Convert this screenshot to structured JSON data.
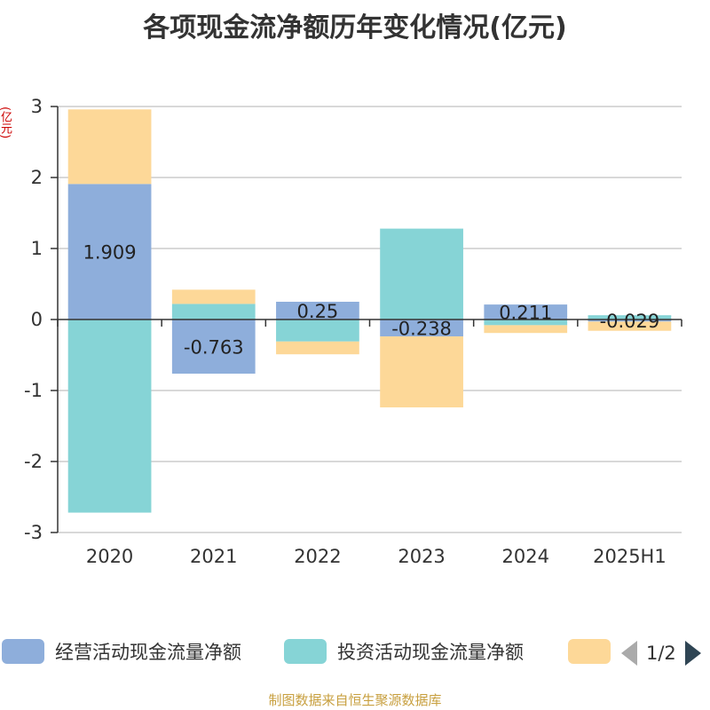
{
  "title": "各项现金流净额历年变化情况(亿元)",
  "unit_label": "(亿元)",
  "source": "制图数据来自恒生聚源数据库",
  "legend": {
    "items": [
      {
        "label": "经营活动现金流量净额",
        "color": "#8eaedb"
      },
      {
        "label": "投资活动现金流量净额",
        "color": "#86d4d6"
      },
      {
        "label": "",
        "color": "#fdd898"
      }
    ],
    "page": "1/2"
  },
  "colors": {
    "operating": "#8eaedb",
    "investing": "#86d4d6",
    "financing": "#fdd898",
    "grid": "#cccccc",
    "axis": "#333333"
  },
  "chart_data": {
    "type": "bar",
    "stacked": true,
    "categories": [
      "2020",
      "2021",
      "2022",
      "2023",
      "2024",
      "2025H1"
    ],
    "series": [
      {
        "name": "经营活动现金流量净额",
        "values": [
          1.909,
          -0.763,
          0.25,
          -0.238,
          0.211,
          -0.029
        ],
        "labels": [
          "1.909",
          "-0.763",
          "0.25",
          "-0.238",
          "0.211",
          "-0.029"
        ]
      },
      {
        "name": "投资活动现金流量净额",
        "values": [
          -2.72,
          0.22,
          -0.31,
          1.28,
          -0.08,
          0.06
        ]
      },
      {
        "values": [
          1.05,
          0.2,
          -0.18,
          -1.0,
          -0.11,
          -0.13
        ]
      }
    ],
    "y_ticks": [
      "3",
      "2",
      "1",
      "0",
      "-1",
      "-2",
      "-3"
    ],
    "ylim": [
      -3,
      3
    ],
    "grid": true,
    "legend_position": "bottom"
  }
}
